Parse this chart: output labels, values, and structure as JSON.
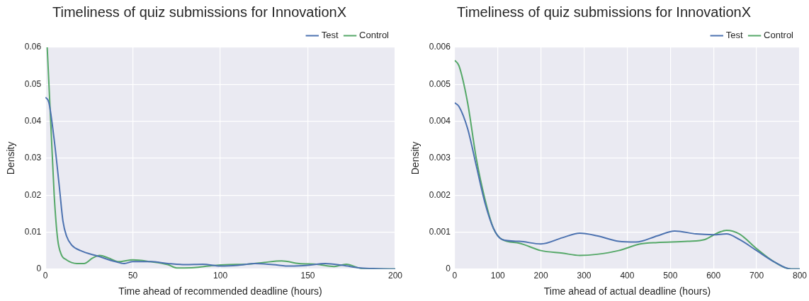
{
  "chart_data": [
    {
      "type": "line",
      "title": "Timeliness of quiz submissions for InnovationX",
      "xlabel": "Time ahead of recommended deadline (hours)",
      "ylabel": "Density",
      "xlim": [
        0,
        200
      ],
      "xticks": [
        0,
        50,
        100,
        150,
        200
      ],
      "ylim": [
        0,
        0.06
      ],
      "yticks": [
        0,
        0.01,
        0.02,
        0.03,
        0.04,
        0.05,
        0.06
      ],
      "grid": true,
      "legend": "top right",
      "marker": "none",
      "line_style": "solid",
      "series": [
        {
          "name": "Test",
          "color": "#4c72b0",
          "x": [
            0,
            2,
            5,
            8,
            10,
            12,
            15,
            20,
            30,
            40,
            45,
            50,
            60,
            70,
            80,
            90,
            100,
            110,
            120,
            130,
            140,
            150,
            160,
            170,
            180,
            190,
            200
          ],
          "values": [
            0.0465,
            0.045,
            0.035,
            0.022,
            0.013,
            0.009,
            0.0065,
            0.005,
            0.0035,
            0.002,
            0.0015,
            0.002,
            0.002,
            0.0015,
            0.0012,
            0.0013,
            0.0008,
            0.001,
            0.0015,
            0.0012,
            0.0008,
            0.001,
            0.0015,
            0.001,
            0.0003,
            0.0001,
            0
          ]
        },
        {
          "name": "Control",
          "color": "#55a868",
          "x": [
            1,
            3,
            5,
            7,
            9,
            12,
            18,
            22,
            27,
            31,
            36,
            42,
            50,
            60,
            70,
            75,
            85,
            95,
            105,
            115,
            125,
            135,
            145,
            155,
            165,
            172,
            180,
            190,
            200
          ],
          "values": [
            0.06,
            0.04,
            0.02,
            0.008,
            0.004,
            0.0025,
            0.0015,
            0.0015,
            0.003,
            0.0037,
            0.003,
            0.002,
            0.0025,
            0.002,
            0.0012,
            0.0003,
            0.0004,
            0.0009,
            0.0012,
            0.0013,
            0.0018,
            0.0022,
            0.0015,
            0.0013,
            0.0007,
            0.0013,
            0.0002,
            0,
            0
          ]
        }
      ]
    },
    {
      "type": "line",
      "title": "Timeliness of quiz submissions for InnovationX",
      "xlabel": "Time ahead of actual deadline (hours)",
      "ylabel": "Density",
      "xlim": [
        0,
        800
      ],
      "xticks": [
        0,
        100,
        200,
        300,
        400,
        500,
        600,
        700,
        800
      ],
      "ylim": [
        0,
        0.006
      ],
      "yticks": [
        0,
        0.001,
        0.002,
        0.003,
        0.004,
        0.005,
        0.006
      ],
      "grid": true,
      "legend": "top right",
      "marker": "none",
      "line_style": "solid",
      "series": [
        {
          "name": "Test",
          "color": "#4c72b0",
          "x": [
            0,
            10,
            30,
            50,
            70,
            90,
            110,
            150,
            200,
            250,
            290,
            330,
            380,
            420,
            470,
            510,
            560,
            600,
            630,
            660,
            700,
            740,
            780,
            800
          ],
          "values": [
            0.0045,
            0.0044,
            0.0038,
            0.0028,
            0.0018,
            0.0011,
            0.0008,
            0.00075,
            0.00068,
            0.00085,
            0.00097,
            0.0009,
            0.00075,
            0.00073,
            0.0009,
            0.00103,
            0.00095,
            0.00093,
            0.00095,
            0.0008,
            0.0005,
            0.0002,
            0,
            0
          ]
        },
        {
          "name": "Control",
          "color": "#55a868",
          "x": [
            0,
            10,
            30,
            50,
            70,
            90,
            110,
            150,
            200,
            250,
            290,
            330,
            380,
            430,
            470,
            540,
            580,
            610,
            630,
            660,
            700,
            740,
            780,
            800
          ],
          "values": [
            0.00565,
            0.0055,
            0.0045,
            0.003,
            0.0019,
            0.0011,
            0.0008,
            0.0007,
            0.0005,
            0.00043,
            0.00037,
            0.0004,
            0.0005,
            0.00068,
            0.00072,
            0.00075,
            0.0008,
            0.00098,
            0.00105,
            0.00095,
            0.00055,
            0.0002,
            0,
            0
          ]
        }
      ]
    }
  ]
}
